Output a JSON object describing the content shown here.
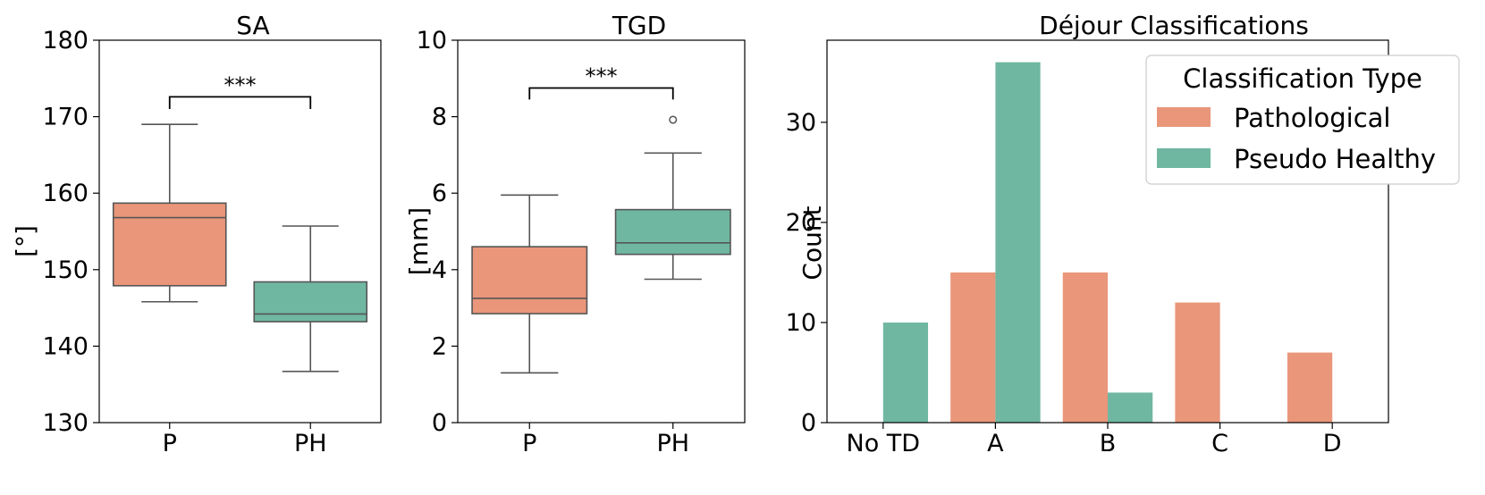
{
  "colors": {
    "pathological": "#E9967A",
    "pseudo_healthy": "#70B7A1",
    "whisker": "#555555"
  },
  "chart_data": [
    {
      "type": "box",
      "title": "SA",
      "ylabel": "[°]",
      "ylim": [
        130,
        180
      ],
      "yticks": [
        130,
        140,
        150,
        160,
        170,
        180
      ],
      "categories": [
        "P",
        "PH"
      ],
      "boxes": [
        {
          "name": "P",
          "whislo": 145.8,
          "q1": 147.9,
          "med": 156.8,
          "q3": 158.7,
          "whishi": 169.0,
          "fliers": []
        },
        {
          "name": "PH",
          "whislo": 136.7,
          "q1": 143.2,
          "med": 144.2,
          "q3": 148.4,
          "whishi": 155.7,
          "fliers": []
        }
      ],
      "significance": {
        "label": "***",
        "base": 171.0,
        "height": 172.6
      }
    },
    {
      "type": "box",
      "title": "TGD",
      "ylabel": "[mm]",
      "ylim": [
        0,
        10
      ],
      "yticks": [
        0,
        2,
        4,
        6,
        8,
        10
      ],
      "categories": [
        "P",
        "PH"
      ],
      "boxes": [
        {
          "name": "P",
          "whislo": 1.3,
          "q1": 2.85,
          "med": 3.25,
          "q3": 4.6,
          "whishi": 5.95,
          "fliers": []
        },
        {
          "name": "PH",
          "whislo": 3.75,
          "q1": 4.4,
          "med": 4.7,
          "q3": 5.57,
          "whishi": 7.05,
          "fliers": [
            7.92
          ]
        }
      ],
      "significance": {
        "label": "***",
        "base": 8.45,
        "height": 8.75
      }
    },
    {
      "type": "bar",
      "title": "Déjour Classifications",
      "ylabel": "Count",
      "ylim": [
        0,
        38.2
      ],
      "yticks": [
        0,
        10,
        20,
        30
      ],
      "categories": [
        "No TD",
        "A",
        "B",
        "C",
        "D"
      ],
      "series": [
        {
          "name": "Pathological",
          "values": [
            0,
            15,
            15,
            12,
            7
          ]
        },
        {
          "name": "Pseudo Healthy",
          "values": [
            10,
            36,
            3,
            0,
            0
          ]
        }
      ],
      "legend": {
        "title": "Classification Type",
        "position": "top-right"
      }
    }
  ]
}
